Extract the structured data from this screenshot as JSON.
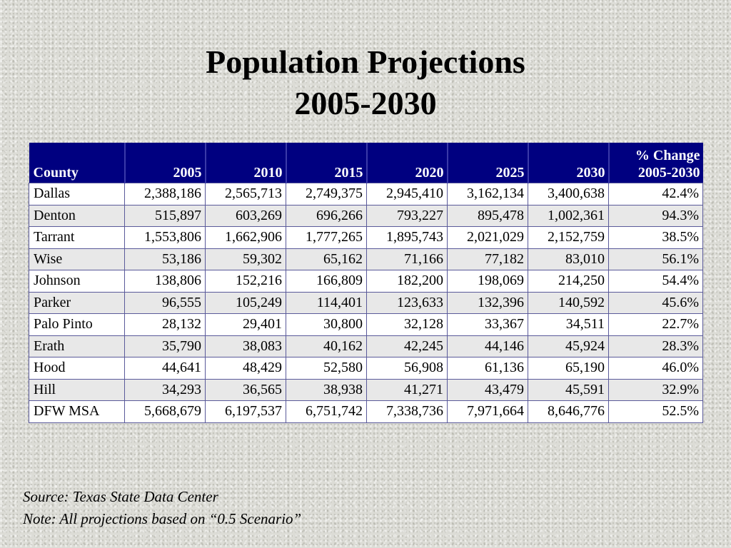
{
  "title": {
    "line1": "Population Projections",
    "line2": "2005-2030"
  },
  "table": {
    "headers": {
      "county": "County",
      "y2005": "2005",
      "y2010": "2010",
      "y2015": "2015",
      "y2020": "2020",
      "y2025": "2025",
      "y2030": "2030",
      "pct_line1": "% Change",
      "pct_line2": "2005-2030"
    },
    "rows": [
      [
        "Dallas",
        "2,388,186",
        "2,565,713",
        "2,749,375",
        "2,945,410",
        "3,162,134",
        "3,400,638",
        "42.4%"
      ],
      [
        "Denton",
        "515,897",
        "603,269",
        "696,266",
        "793,227",
        "895,478",
        "1,002,361",
        "94.3%"
      ],
      [
        "Tarrant",
        "1,553,806",
        "1,662,906",
        "1,777,265",
        "1,895,743",
        "2,021,029",
        "2,152,759",
        "38.5%"
      ],
      [
        "Wise",
        "53,186",
        "59,302",
        "65,162",
        "71,166",
        "77,182",
        "83,010",
        "56.1%"
      ],
      [
        "Johnson",
        "138,806",
        "152,216",
        "166,809",
        "182,200",
        "198,069",
        "214,250",
        "54.4%"
      ],
      [
        "Parker",
        "96,555",
        "105,249",
        "114,401",
        "123,633",
        "132,396",
        "140,592",
        "45.6%"
      ],
      [
        "Palo Pinto",
        "28,132",
        "29,401",
        "30,800",
        "32,128",
        "33,367",
        "34,511",
        "22.7%"
      ],
      [
        "Erath",
        "35,790",
        "38,083",
        "40,162",
        "42,245",
        "44,146",
        "45,924",
        "28.3%"
      ],
      [
        "Hood",
        "44,641",
        "48,429",
        "52,580",
        "56,908",
        "61,136",
        "65,190",
        "46.0%"
      ],
      [
        "Hill",
        "34,293",
        "36,565",
        "38,938",
        "41,271",
        "43,479",
        "45,591",
        "32.9%"
      ],
      [
        "DFW MSA",
        "5,668,679",
        "6,197,537",
        "6,751,742",
        "7,338,736",
        "7,971,664",
        "8,646,776",
        "52.5%"
      ]
    ]
  },
  "notes": {
    "source": "Source: Texas State Data Center",
    "note": "Note:  All projections based on “0.5 Scenario”"
  },
  "colors": {
    "header_bg": "#000080",
    "header_text": "#ffffff",
    "row_odd": "#ffffff",
    "row_even": "#e8e8e8"
  }
}
